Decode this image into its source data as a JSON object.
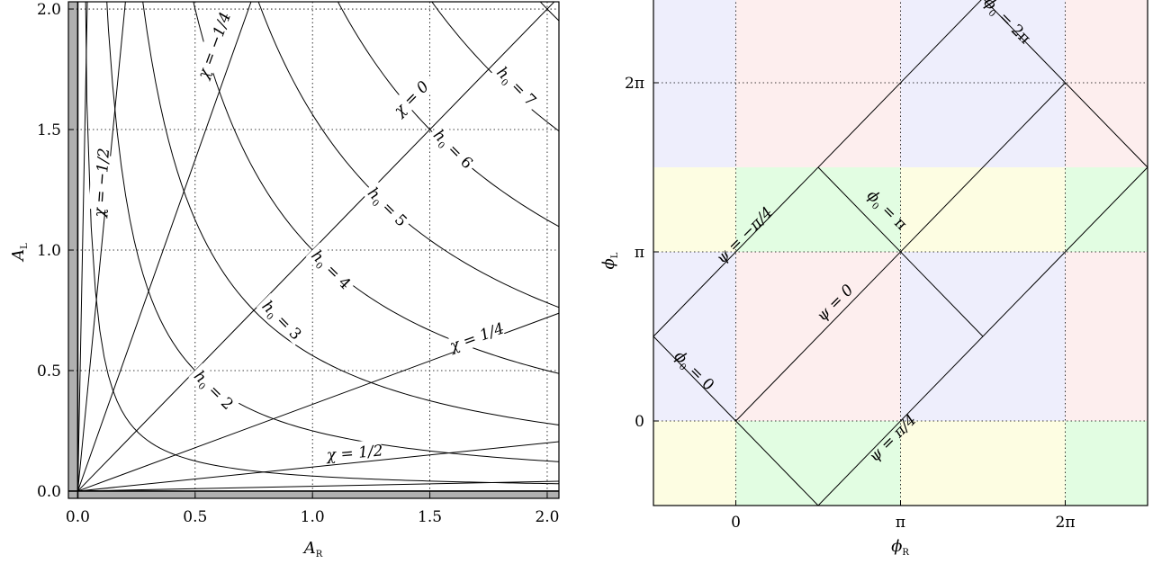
{
  "chart_data": [
    {
      "type": "line",
      "title": "",
      "xlabel": {
        "main": "A",
        "sub": "R"
      },
      "ylabel": {
        "main": "A",
        "sub": "L"
      },
      "xlim": [
        -0.04,
        2.05
      ],
      "ylim": [
        -0.03,
        2.03
      ],
      "excluded_region_color": "#b0b0b0",
      "xticks": [
        {
          "value": 0.0,
          "label": "0.0"
        },
        {
          "value": 0.5,
          "label": "0.5"
        },
        {
          "value": 1.0,
          "label": "1.0"
        },
        {
          "value": 1.5,
          "label": "1.5"
        },
        {
          "value": 2.0,
          "label": "2.0"
        }
      ],
      "yticks": [
        {
          "value": 0.0,
          "label": "0.0"
        },
        {
          "value": 0.5,
          "label": "0.5"
        },
        {
          "value": 1.0,
          "label": "1.0"
        },
        {
          "value": 1.5,
          "label": "1.5"
        },
        {
          "value": 2.0,
          "label": "2.0"
        }
      ],
      "grid": true,
      "h0_curves": [
        1,
        2,
        3,
        4,
        5,
        6,
        7,
        8
      ],
      "chi_slopes": [
        0.02,
        0.1,
        0.36,
        2.75,
        10,
        50
      ],
      "annotations": [
        {
          "key": "h2",
          "main": "h",
          "sub": "0",
          "rest": " = 2",
          "x": 0.58,
          "y": 0.42,
          "angle": 45
        },
        {
          "key": "h3",
          "main": "h",
          "sub": "0",
          "rest": " = 3",
          "x": 0.87,
          "y": 0.71,
          "angle": 45
        },
        {
          "key": "h4",
          "main": "h",
          "sub": "0",
          "rest": " = 4",
          "x": 1.08,
          "y": 0.92,
          "angle": 45
        },
        {
          "key": "h5",
          "main": "h",
          "sub": "0",
          "rest": " = 5",
          "x": 1.32,
          "y": 1.18,
          "angle": 45
        },
        {
          "key": "h6",
          "main": "h",
          "sub": "0",
          "rest": " = 6",
          "x": 1.6,
          "y": 1.42,
          "angle": 45
        },
        {
          "key": "h7",
          "main": "h",
          "sub": "0",
          "rest": " = 7",
          "x": 1.87,
          "y": 1.68,
          "angle": 45
        },
        {
          "key": "chi0",
          "main": "χ = 0",
          "x": 1.42,
          "y": 1.63,
          "angle": -45
        },
        {
          "key": "chim14",
          "main": "χ = −1/4",
          "x": 0.58,
          "y": 1.85,
          "angle": -70
        },
        {
          "key": "chim12",
          "main": "χ = −1/2",
          "x": 0.1,
          "y": 1.28,
          "angle": -86
        },
        {
          "key": "chi14",
          "main": "χ = 1/4",
          "x": 1.7,
          "y": 0.64,
          "angle": -20
        },
        {
          "key": "chi12",
          "main": "χ = 1/2",
          "x": 1.18,
          "y": 0.16,
          "angle": -5
        }
      ]
    },
    {
      "type": "line",
      "title": "",
      "xlabel": {
        "main": "ϕ",
        "sub": "R"
      },
      "ylabel": {
        "main": "ϕ",
        "sub": "L"
      },
      "xlim": [
        -0.5,
        2.5
      ],
      "ylim": [
        -0.5,
        2.5
      ],
      "units": "pi",
      "xticks": [
        {
          "value": 0,
          "label": "0"
        },
        {
          "value": 1,
          "label": "π"
        },
        {
          "value": 2,
          "label": "2π"
        }
      ],
      "yticks": [
        {
          "value": 0,
          "label": "0"
        },
        {
          "value": 1,
          "label": "π"
        },
        {
          "value": 2,
          "label": "2π"
        }
      ],
      "grid": true,
      "colors": {
        "blue": "#eeeefc",
        "pink": "#fdeeee",
        "yellow": "#fdfde2",
        "green": "#e2fde2"
      },
      "cell_color_rows": [
        [
          "yellow",
          "green",
          "yellow",
          "green"
        ],
        [
          "blue",
          "pink",
          "blue",
          "pink"
        ],
        [
          "blue",
          "pink",
          "blue",
          "pink"
        ],
        [
          "yellow",
          "green",
          "yellow",
          "green"
        ],
        [
          "blue",
          "pink",
          "blue",
          "pink"
        ],
        [
          "blue",
          "pink",
          "blue",
          "pink"
        ]
      ],
      "segments": [
        [
          [
            -0.5,
            0.5
          ],
          [
            1.5,
            2.5
          ]
        ],
        [
          [
            0,
            0
          ],
          [
            2,
            2
          ]
        ],
        [
          [
            0.5,
            -0.5
          ],
          [
            2.5,
            1.5
          ]
        ],
        [
          [
            -0.5,
            0.5
          ],
          [
            0,
            0
          ]
        ],
        [
          [
            0,
            0
          ],
          [
            0.5,
            -0.5
          ]
        ],
        [
          [
            0.5,
            1.5
          ],
          [
            1.5,
            0.5
          ]
        ],
        [
          [
            1.5,
            2.5
          ],
          [
            2.5,
            1.5
          ]
        ]
      ],
      "annotations": [
        {
          "key": "phi0",
          "main": "ϕ",
          "sub": "0",
          "rest": " = 0",
          "x": -0.25,
          "y": 0.3,
          "angle": 45
        },
        {
          "key": "phipi",
          "main": "ϕ",
          "sub": "0",
          "rest": " = π",
          "x": 0.92,
          "y": 1.25,
          "angle": 45
        },
        {
          "key": "phi2pi",
          "main": "ϕ",
          "sub": "0",
          "rest": " = 2π",
          "x": 1.65,
          "y": 2.37,
          "angle": 45
        },
        {
          "key": "psi0",
          "main": "ψ = 0",
          "x": 0.6,
          "y": 0.7,
          "angle": -45
        },
        {
          "key": "psim",
          "main": "ψ = −π/4",
          "x": 0.05,
          "y": 1.1,
          "angle": -45
        },
        {
          "key": "psip",
          "main": "ψ = π/4",
          "x": 0.95,
          "y": -0.1,
          "angle": -45
        }
      ]
    }
  ]
}
